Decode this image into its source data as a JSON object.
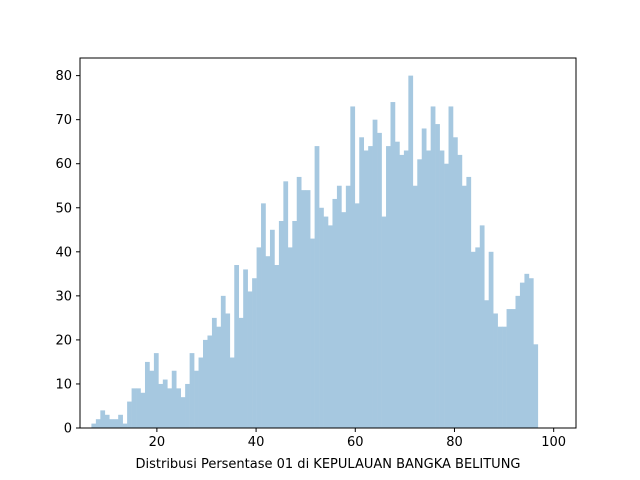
{
  "chart_data": {
    "type": "histogram",
    "title": "",
    "xlabel": "Distribusi Persentase 01 di KEPULAUAN BANGKA BELITUNG",
    "ylabel": "",
    "xlim": [
      4.5,
      104.5
    ],
    "ylim": [
      0,
      84
    ],
    "xticks": [
      20,
      40,
      60,
      80,
      100
    ],
    "yticks": [
      0,
      10,
      20,
      30,
      40,
      50,
      60,
      70,
      80
    ],
    "grid": false,
    "bar_color": "#a6c8e0",
    "bin_start": 6.8,
    "bin_width": 0.9,
    "values": [
      1,
      2,
      4,
      3,
      2,
      2,
      3,
      1,
      6,
      9,
      9,
      8,
      15,
      13,
      17,
      10,
      11,
      9,
      13,
      9,
      7,
      10,
      17,
      13,
      16,
      20,
      21,
      25,
      23,
      30,
      26,
      16,
      37,
      25,
      36,
      31,
      34,
      41,
      51,
      39,
      45,
      37,
      47,
      56,
      41,
      47,
      57,
      54,
      54,
      43,
      64,
      50,
      48,
      46,
      52,
      55,
      49,
      55,
      73,
      51,
      66,
      63,
      64,
      70,
      67,
      48,
      64,
      74,
      65,
      62,
      63,
      80,
      55,
      61,
      68,
      63,
      73,
      69,
      63,
      60,
      73,
      66,
      62,
      55,
      57,
      40,
      41,
      46,
      29,
      40,
      26,
      23,
      23,
      27,
      27,
      30,
      33,
      35,
      34,
      19
    ]
  }
}
